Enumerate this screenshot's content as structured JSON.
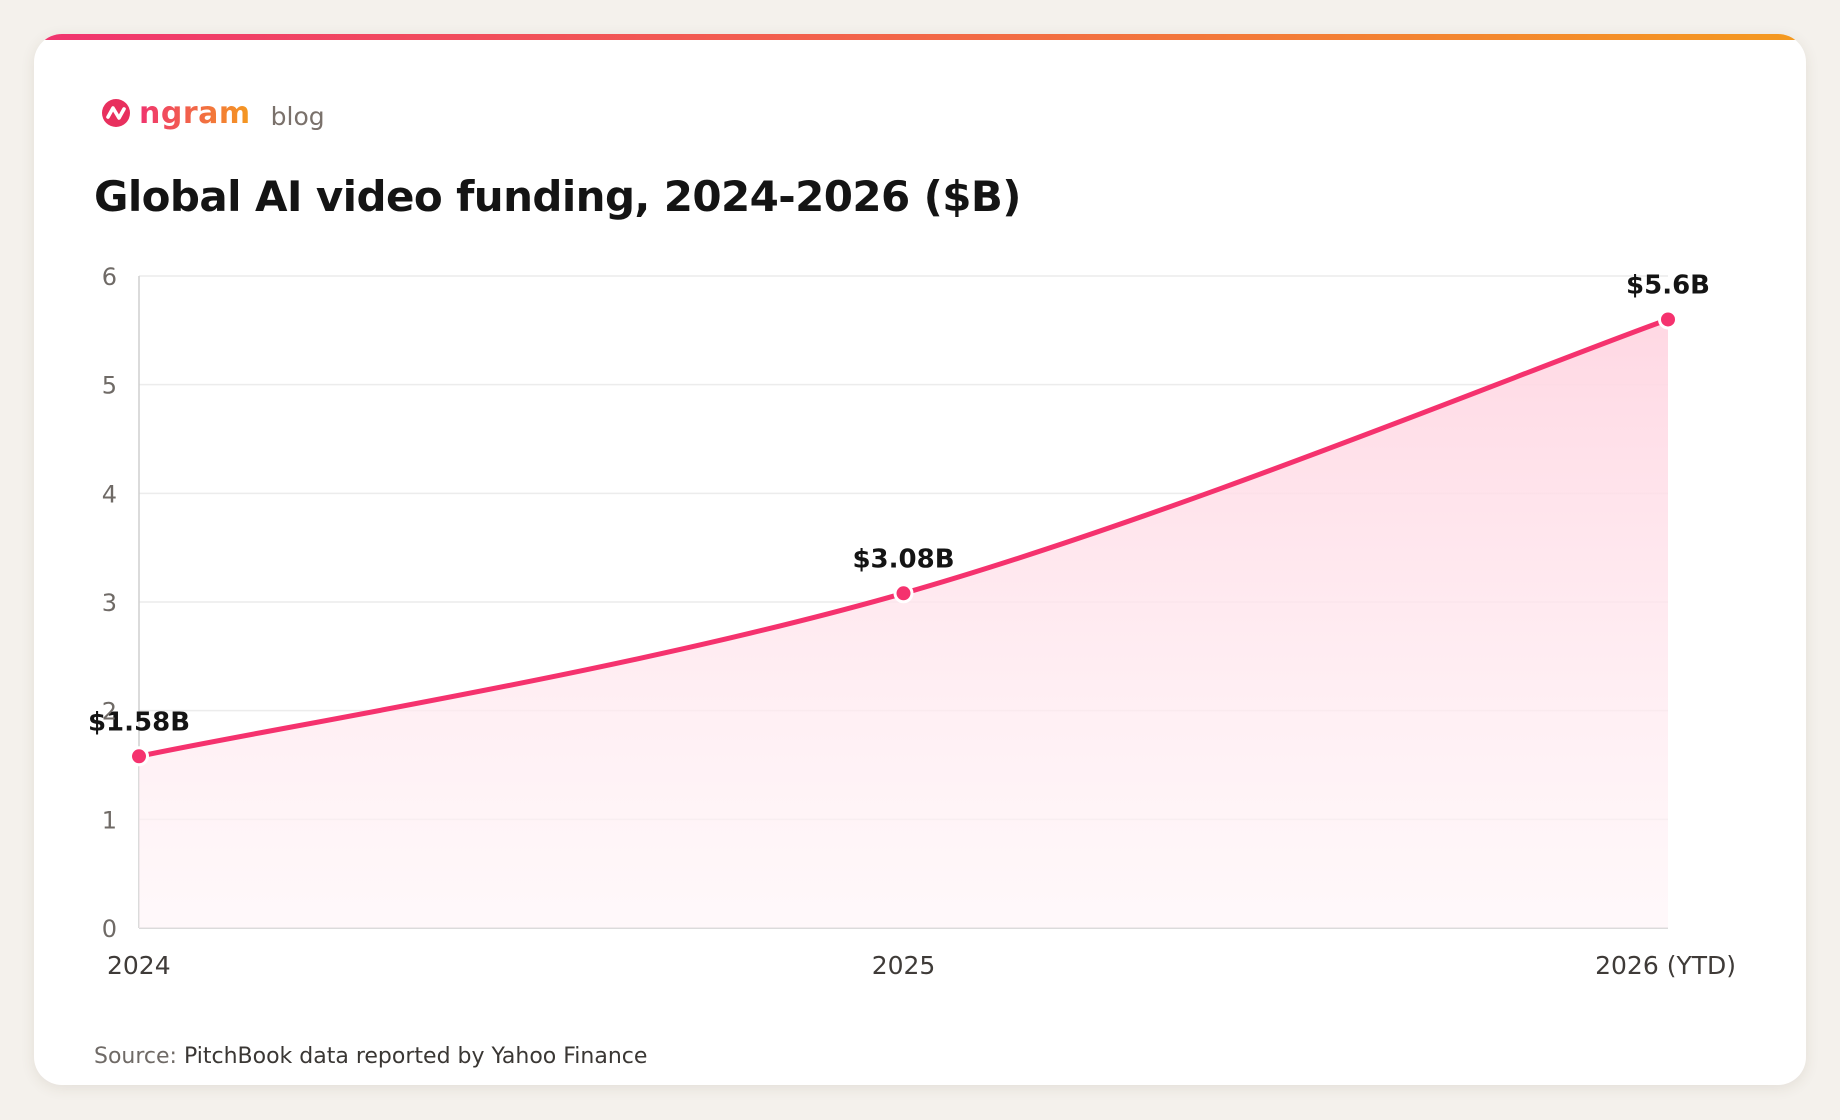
{
  "brand": {
    "name": "ngram",
    "section": "blog",
    "logo_icon": "ngram-logo-icon"
  },
  "colors": {
    "accent": "#f5326e",
    "gradient_start": "#f0346f",
    "gradient_end": "#f49a1f",
    "fill": "#ffd9e4"
  },
  "chart_data": {
    "type": "area",
    "title": "Global AI video funding, 2024-2026 ($B)",
    "xlabel": "",
    "ylabel": "",
    "categories": [
      "2024",
      "2025",
      "2026 (YTD)"
    ],
    "values": [
      1.58,
      3.08,
      5.6
    ],
    "data_labels": [
      "$1.58B",
      "$3.08B",
      "$5.6B"
    ],
    "yticks": [
      "0",
      "1",
      "2",
      "3",
      "4",
      "5",
      "6"
    ],
    "ylim": [
      0,
      6
    ],
    "grid": true,
    "legend": "none"
  },
  "source": {
    "label": "Source:",
    "text": "PitchBook data reported by Yahoo Finance"
  }
}
